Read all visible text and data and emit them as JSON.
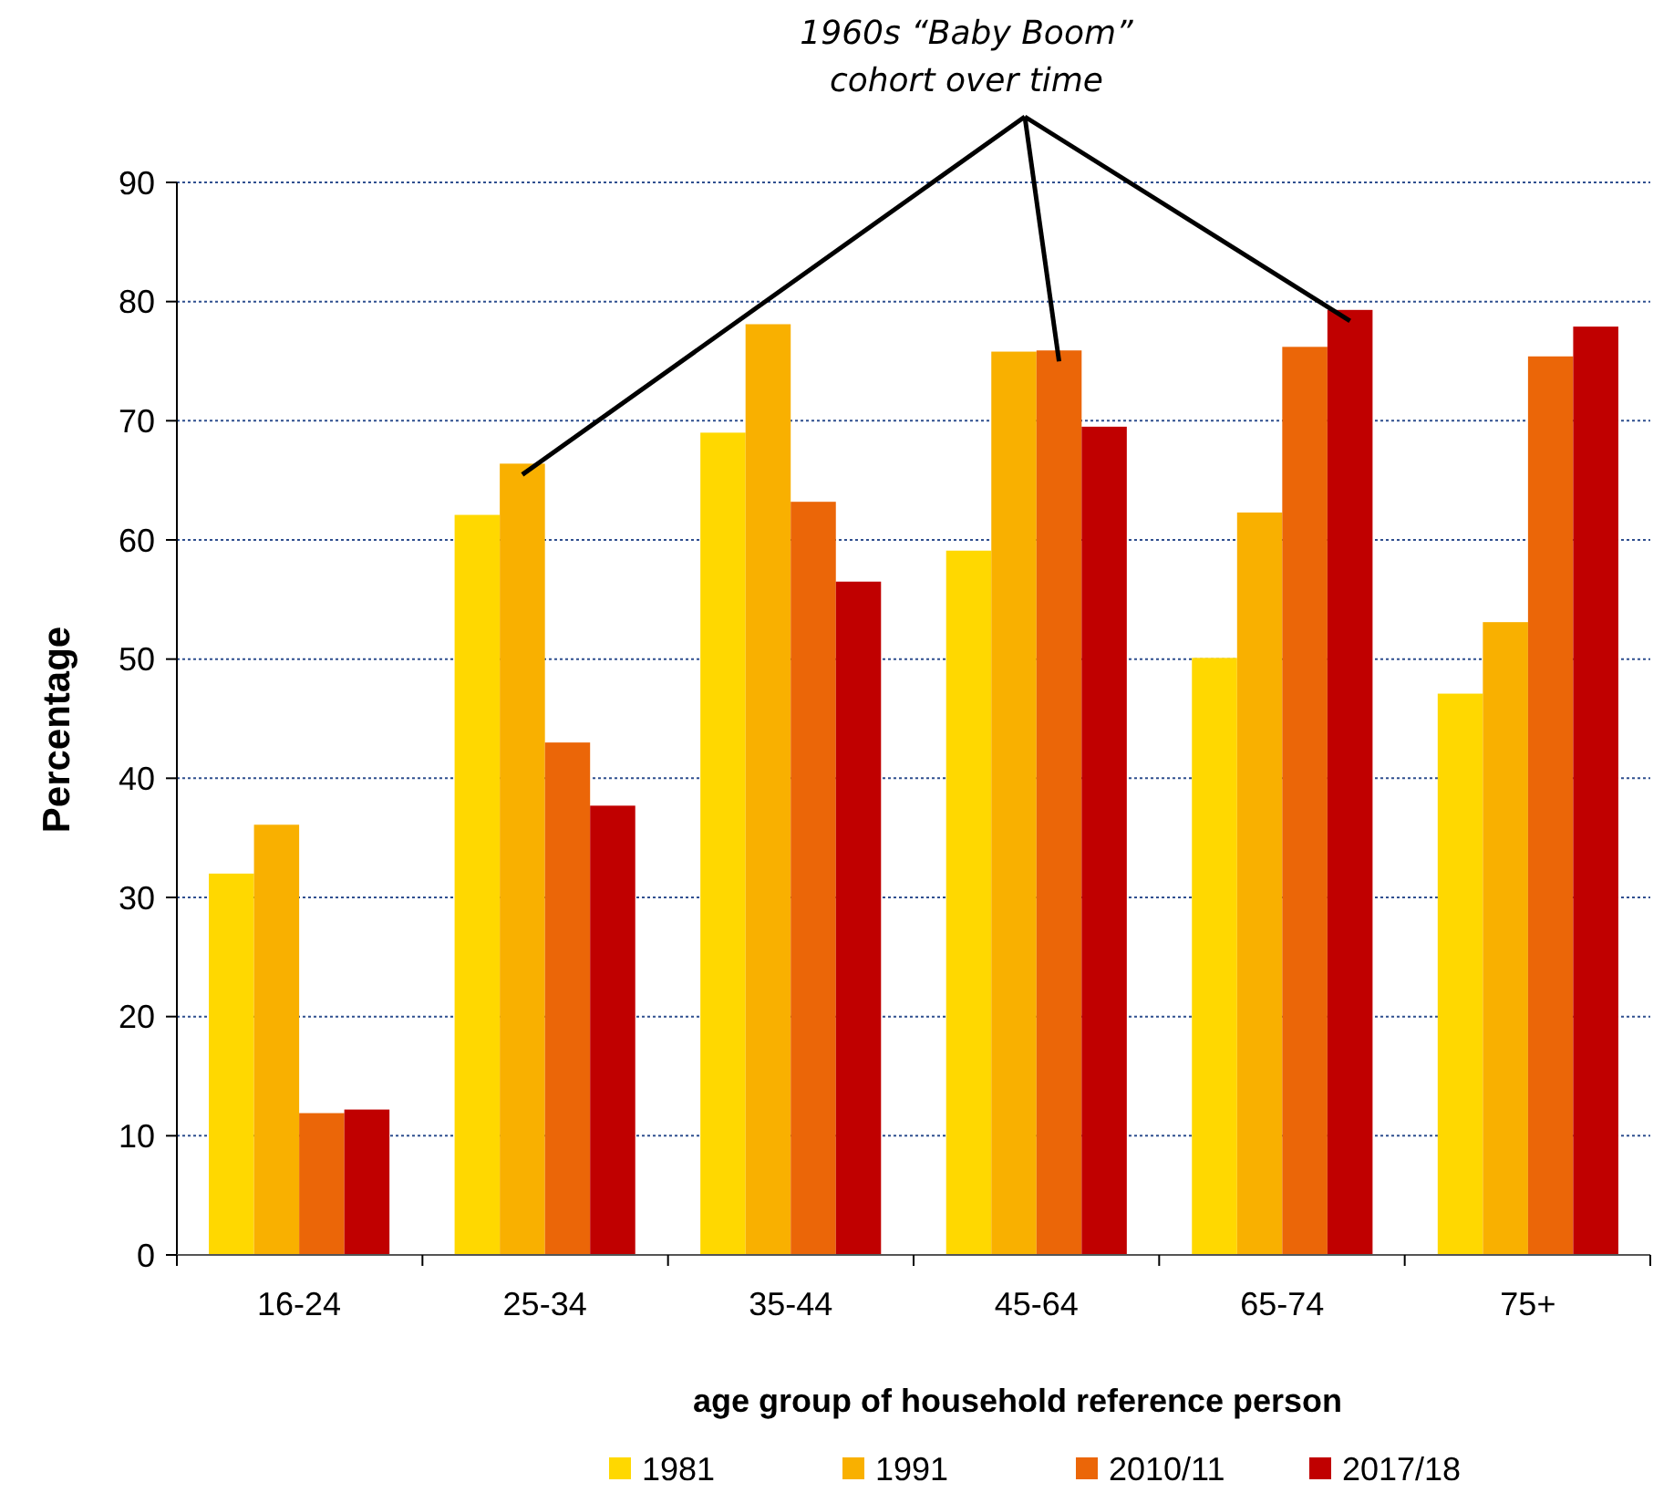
{
  "chart_data": {
    "type": "bar",
    "xlabel": "age group of household reference person",
    "ylabel": "Percentage",
    "annotations": [
      "1960s “Baby Boom” cohort over time"
    ],
    "categories": [
      "16-24",
      "25-34",
      "35-44",
      "45-64",
      "65-74",
      "75+"
    ],
    "series": [
      {
        "name": "1981",
        "color": "#ffd800",
        "values": [
          32,
          62.1,
          69,
          59.1,
          50.1,
          47.1
        ]
      },
      {
        "name": "1991",
        "color": "#f9b000",
        "values": [
          36.1,
          66.4,
          78.1,
          75.8,
          62.3,
          53.1
        ]
      },
      {
        "name": "2010/11",
        "color": "#eb6608",
        "values": [
          11.9,
          43,
          63.2,
          75.9,
          76.2,
          75.4
        ]
      },
      {
        "name": "2017/18",
        "color": "#c00000",
        "values": [
          12.2,
          37.7,
          56.5,
          69.5,
          79.3,
          77.9
        ]
      }
    ],
    "ylim": [
      0,
      90
    ],
    "yticks": [
      0,
      10,
      20,
      30,
      40,
      50,
      60,
      70,
      80,
      90
    ],
    "grid": "y",
    "legend": "bottom"
  }
}
